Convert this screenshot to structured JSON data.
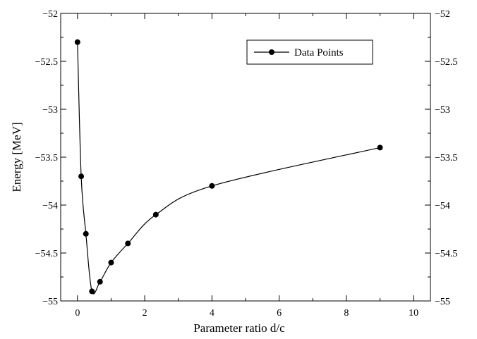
{
  "chart_data": {
    "type": "line",
    "xlabel": "Parameter ratio d/c",
    "ylabel": "Energy [MeV]",
    "xlim": [
      -0.5,
      10.5
    ],
    "ylim": [
      -55,
      -52
    ],
    "x_ticks": [
      0,
      2,
      4,
      6,
      8,
      10
    ],
    "y_ticks": [
      -52,
      -52.5,
      -53,
      -53.5,
      -54,
      -54.5,
      -55
    ],
    "x_tick_labels": [
      "0",
      "2",
      "4",
      "6",
      "8",
      "10"
    ],
    "y_tick_labels": [
      "−52",
      "−52.5",
      "−53",
      "−53.5",
      "−54",
      "−54.5",
      "−55"
    ],
    "mirror_right_axis": true,
    "grid": false,
    "legend_position": "top-right",
    "series": [
      {
        "name": "Data Points",
        "marker": "circle",
        "color": "#000000",
        "x": [
          0.0,
          0.11,
          0.25,
          0.43,
          0.67,
          1.0,
          1.5,
          2.33,
          4.0,
          9.0
        ],
        "y": [
          -52.3,
          -53.7,
          -54.3,
          -54.9,
          -54.8,
          -54.6,
          -54.4,
          -54.1,
          -53.8,
          -53.4
        ]
      }
    ]
  }
}
